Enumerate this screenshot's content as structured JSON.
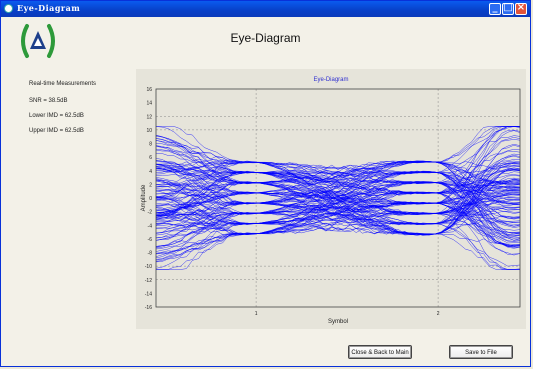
{
  "window": {
    "title": "Eye-Diagram"
  },
  "header": {
    "title": "Eye-Diagram"
  },
  "measurements": {
    "heading": "Real-time Measurements",
    "snr": "SNR = 38.5dB",
    "lower_imd": "Lower IMD = 62.5dB",
    "upper_imd": "Upper IMD = 62.5dB"
  },
  "chart_data": {
    "type": "line",
    "title": "Eye-Diagram",
    "xlabel": "Symbol",
    "ylabel": "Amplitude",
    "xlim": [
      0.45,
      2.45
    ],
    "ylim": [
      -16,
      16
    ],
    "x_ticks": [
      1,
      2
    ],
    "y_ticks": [
      -16,
      -14,
      -12,
      -10,
      -8,
      -6,
      -4,
      -2,
      0,
      2,
      4,
      6,
      8,
      10,
      12,
      14,
      16
    ],
    "symbol_levels": [
      -5.25,
      -3.75,
      -2.25,
      -0.75,
      0.75,
      2.25,
      3.75,
      5.25
    ],
    "grid": true,
    "series_color": "#0000ff"
  },
  "buttons": {
    "close_label": "Close & Back to Main",
    "save_label": "Save to File"
  },
  "colors": {
    "trace": "#0000ff",
    "titlebar": "#0a46d8",
    "plot_title": "#3030d0"
  }
}
